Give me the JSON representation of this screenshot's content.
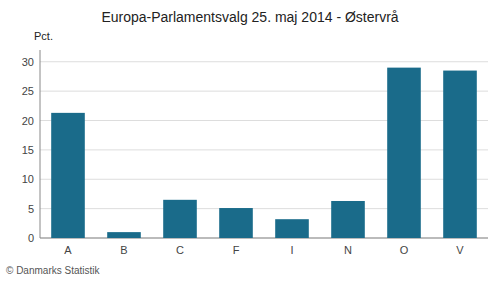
{
  "chart_data": {
    "type": "bar",
    "title": "Europa-Parlamentsvalg 25. maj 2014 - Østervrå",
    "ylabel": "Pct.",
    "footer": "© Danmarks Statistik",
    "categories": [
      "A",
      "B",
      "C",
      "F",
      "I",
      "N",
      "O",
      "V"
    ],
    "values": [
      21.3,
      1.0,
      6.5,
      5.1,
      3.2,
      6.3,
      29.0,
      28.5
    ],
    "color": "#1a6b8a",
    "ylim": [
      0,
      32
    ],
    "yticks": [
      0,
      5,
      10,
      15,
      20,
      25,
      30
    ],
    "grid": true
  }
}
